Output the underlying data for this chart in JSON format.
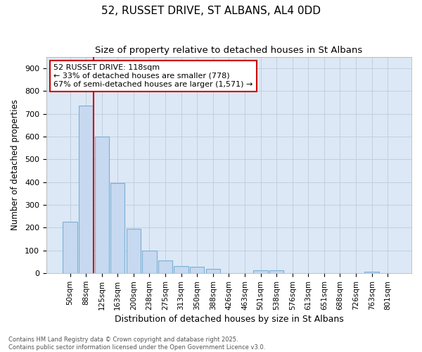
{
  "title": "52, RUSSET DRIVE, ST ALBANS, AL4 0DD",
  "subtitle": "Size of property relative to detached houses in St Albans",
  "xlabel": "Distribution of detached houses by size in St Albans",
  "ylabel": "Number of detached properties",
  "categories": [
    "50sqm",
    "88sqm",
    "125sqm",
    "163sqm",
    "200sqm",
    "238sqm",
    "275sqm",
    "313sqm",
    "350sqm",
    "388sqm",
    "426sqm",
    "463sqm",
    "501sqm",
    "538sqm",
    "576sqm",
    "613sqm",
    "651sqm",
    "688sqm",
    "726sqm",
    "763sqm",
    "801sqm"
  ],
  "values": [
    225,
    735,
    600,
    395,
    195,
    100,
    55,
    33,
    27,
    18,
    0,
    0,
    12,
    12,
    0,
    0,
    0,
    0,
    0,
    7,
    0
  ],
  "bar_color": "#c6d9f0",
  "bar_edge_color": "#7bafd4",
  "plot_bg_color": "#dce8f5",
  "figure_bg_color": "#ffffff",
  "grid_color": "#c0cfe0",
  "vline_color": "#cc0000",
  "vline_x_index": 1.5,
  "annotation_text": "52 RUSSET DRIVE: 118sqm\n← 33% of detached houses are smaller (778)\n67% of semi-detached houses are larger (1,571) →",
  "annotation_box_facecolor": "#ffffff",
  "annotation_box_edgecolor": "#cc0000",
  "ylim": [
    0,
    950
  ],
  "yticks": [
    0,
    100,
    200,
    300,
    400,
    500,
    600,
    700,
    800,
    900
  ],
  "footer_line1": "Contains HM Land Registry data © Crown copyright and database right 2025.",
  "footer_line2": "Contains public sector information licensed under the Open Government Licence v3.0."
}
